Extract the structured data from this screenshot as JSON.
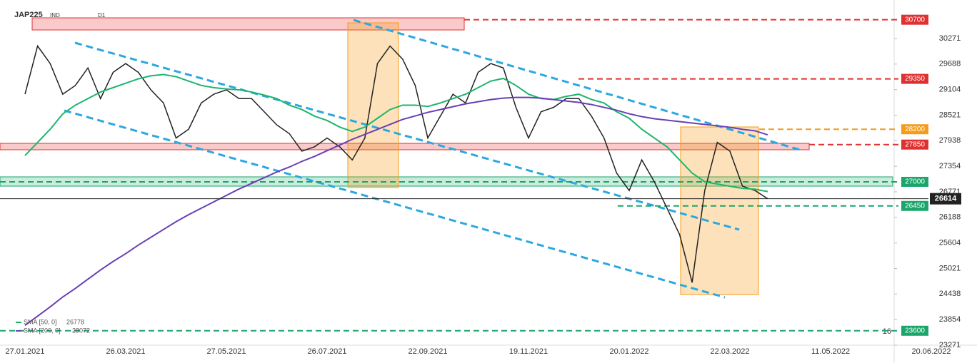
{
  "chart_data": {
    "type": "line",
    "title": "JAP225",
    "subtitle": "IND",
    "timeframe": "D1",
    "categories": [
      "27.01.2021",
      null,
      null,
      null,
      null,
      null,
      null,
      null,
      "26.03.2021",
      null,
      null,
      null,
      null,
      null,
      null,
      null,
      "27.05.2021",
      null,
      null,
      null,
      null,
      null,
      null,
      null,
      "26.07.2021",
      null,
      null,
      null,
      null,
      null,
      null,
      null,
      "22.09.2021",
      null,
      null,
      null,
      null,
      null,
      null,
      null,
      "19.11.2021",
      null,
      null,
      null,
      null,
      null,
      null,
      null,
      "20.01.2022",
      null,
      null,
      null,
      null,
      null,
      null,
      null,
      "22.03.2022",
      null,
      null,
      null,
      null,
      null,
      null,
      null,
      "11.05.2022",
      null,
      null,
      null,
      null,
      null,
      null,
      null,
      "20.06.2022"
    ],
    "series": [
      {
        "color": "#222222",
        "values": [
          29000,
          30100,
          29700,
          29000,
          29200,
          29600,
          28900,
          29500,
          29700,
          29500,
          29100,
          28800,
          28000,
          28200,
          28800,
          29000,
          29100,
          28900,
          28900,
          28600,
          28300,
          28100,
          27700,
          27800,
          28000,
          27800,
          27500,
          28000,
          29700,
          30100,
          29800,
          29200,
          28000,
          28500,
          29000,
          28800,
          29500,
          29700,
          29600,
          28700,
          28000,
          28600,
          28700,
          28900,
          28900,
          28500,
          28000,
          27200,
          26800,
          27500,
          27000,
          26400,
          25800,
          24700,
          26800,
          27900,
          27700,
          26900,
          26800,
          26614,
          null,
          null,
          null,
          null,
          null,
          null,
          null,
          null,
          null,
          null,
          null,
          null,
          null
        ]
      },
      {
        "name": "SMA [50, 0]",
        "color": "#1db56e",
        "values": [
          27600,
          27900,
          28200,
          28550,
          28750,
          28900,
          29050,
          29150,
          29250,
          29350,
          29420,
          29450,
          29400,
          29300,
          29200,
          29150,
          29120,
          29100,
          29050,
          28980,
          28900,
          28750,
          28650,
          28500,
          28400,
          28250,
          28150,
          28250,
          28450,
          28650,
          28750,
          28750,
          28720,
          28800,
          28900,
          29000,
          29150,
          29300,
          29360,
          29200,
          29000,
          28900,
          28880,
          28950,
          29000,
          28880,
          28800,
          28600,
          28450,
          28200,
          28000,
          27800,
          27500,
          27200,
          27000,
          26950,
          26900,
          26850,
          26830,
          26778,
          null,
          null,
          null,
          null,
          null,
          null,
          null,
          null,
          null,
          null,
          null,
          null,
          null
        ]
      },
      {
        "name": "SMA [200, 0]",
        "color": "#6a3fb5",
        "values": [
          23723,
          23934,
          24145,
          24372,
          24566,
          24777,
          24987,
          25182,
          25360,
          25555,
          25733,
          25911,
          26089,
          26251,
          26397,
          26543,
          26689,
          26835,
          26964,
          27094,
          27224,
          27337,
          27467,
          27580,
          27710,
          27840,
          27970,
          28083,
          28197,
          28310,
          28424,
          28504,
          28585,
          28650,
          28715,
          28780,
          28829,
          28877,
          28910,
          28926,
          28926,
          28910,
          28877,
          28845,
          28812,
          28764,
          28699,
          28634,
          28553,
          28488,
          28440,
          28407,
          28375,
          28342,
          28310,
          28278,
          28245,
          28197,
          28164,
          28072,
          null,
          null,
          null,
          null,
          null,
          null,
          null,
          null,
          null,
          null,
          null,
          null,
          null
        ]
      }
    ],
    "levels": [
      {
        "value": 30700,
        "color": "#e03131"
      },
      {
        "value": 29350,
        "color": "#e03131"
      },
      {
        "value": 28200,
        "color": "#f59c1a"
      },
      {
        "value": 27850,
        "color": "#e03131"
      },
      {
        "value": 27000,
        "color": "#1aa56b"
      },
      {
        "value": 26450,
        "color": "#1aa56b"
      },
      {
        "value": 23600,
        "color": "#1aa56b"
      }
    ],
    "annotation": "16",
    "ylim": [
      23271,
      31069
    ],
    "yticks": [
      30271,
      29688,
      29104,
      28521,
      27938,
      27354,
      26771,
      26188,
      25604,
      25021,
      24438,
      23854,
      23271
    ]
  }
}
